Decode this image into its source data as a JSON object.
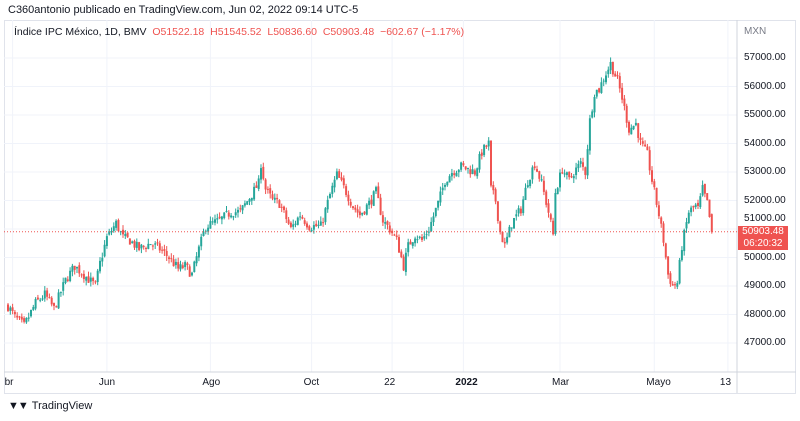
{
  "header": {
    "published": "C360antonio publicado en TradingView.com, Jun 02, 2022 09:14 UTC-5"
  },
  "legend": {
    "symbol": "Índice IPC México, 1D, BMV",
    "open": "O51522.18",
    "high": "H51545.52",
    "low": "L50836.60",
    "close": "C50903.48",
    "change": "−602.67 (−1.17%)"
  },
  "price_label": {
    "value": "50903.48",
    "countdown": "06:20:32"
  },
  "footer": {
    "brand": "TradingView",
    "logo": "17"
  },
  "colors": {
    "up": "#26a69a",
    "down": "#ef5350",
    "grid": "#f0f3fa"
  },
  "chart_data": {
    "type": "candlestick",
    "title": "Índice IPC México, 1D, BMV",
    "currency": "MXN",
    "ylim": [
      46000,
      58000
    ],
    "yticks": [
      "57000.00",
      "56000.00",
      "55000.00",
      "54000.00",
      "53000.00",
      "52000.00",
      "51000.00",
      "50000.00",
      "49000.00",
      "48000.00",
      "47000.00"
    ],
    "ytick_values": [
      57000,
      56000,
      55000,
      54000,
      53000,
      52000,
      51000,
      50000,
      49000,
      48000,
      47000
    ],
    "xticks": [
      "br",
      "Jun",
      "Ago",
      "Oct",
      "22",
      "2022",
      "Mar",
      "Mayo",
      "13"
    ],
    "xtick_days": [
      2,
      43,
      88,
      132,
      167,
      198,
      240,
      281,
      313
    ],
    "last_candle": {
      "open": 51522.18,
      "high": 51545.52,
      "low": 50836.6,
      "close": 50903.48
    },
    "close_keypoints_day_value": [
      [
        0,
        48300
      ],
      [
        3,
        47900
      ],
      [
        7,
        47600
      ],
      [
        12,
        48400
      ],
      [
        16,
        48700
      ],
      [
        20,
        48200
      ],
      [
        25,
        49200
      ],
      [
        29,
        49700
      ],
      [
        33,
        49400
      ],
      [
        38,
        49000
      ],
      [
        40,
        49800
      ],
      [
        43,
        50700
      ],
      [
        47,
        51200
      ],
      [
        50,
        50700
      ],
      [
        53,
        50600
      ],
      [
        57,
        50300
      ],
      [
        62,
        50500
      ],
      [
        66,
        50300
      ],
      [
        70,
        50000
      ],
      [
        74,
        49600
      ],
      [
        77,
        49700
      ],
      [
        80,
        49400
      ],
      [
        83,
        50300
      ],
      [
        86,
        51100
      ],
      [
        89,
        51200
      ],
      [
        92,
        51300
      ],
      [
        97,
        51600
      ],
      [
        101,
        51600
      ],
      [
        105,
        52100
      ],
      [
        109,
        52600
      ],
      [
        110,
        53300
      ],
      [
        112,
        52400
      ],
      [
        115,
        52000
      ],
      [
        118,
        51900
      ],
      [
        123,
        51000
      ],
      [
        127,
        51500
      ],
      [
        131,
        51100
      ],
      [
        136,
        51100
      ],
      [
        140,
        52200
      ],
      [
        143,
        52900
      ],
      [
        147,
        52300
      ],
      [
        150,
        51800
      ],
      [
        153,
        51500
      ],
      [
        157,
        51900
      ],
      [
        160,
        52300
      ],
      [
        163,
        51300
      ],
      [
        166,
        51000
      ],
      [
        169,
        50600
      ],
      [
        172,
        49700
      ],
      [
        174,
        50400
      ],
      [
        177,
        50800
      ],
      [
        180,
        50600
      ],
      [
        183,
        51000
      ],
      [
        187,
        51900
      ],
      [
        190,
        52700
      ],
      [
        193,
        53000
      ],
      [
        197,
        53200
      ],
      [
        200,
        53100
      ],
      [
        203,
        53000
      ],
      [
        206,
        53700
      ],
      [
        209,
        54000
      ],
      [
        210,
        52400
      ],
      [
        212,
        52000
      ],
      [
        214,
        50900
      ],
      [
        216,
        50400
      ],
      [
        219,
        51200
      ],
      [
        223,
        51700
      ],
      [
        226,
        52700
      ],
      [
        229,
        53300
      ],
      [
        232,
        52600
      ],
      [
        235,
        51600
      ],
      [
        237,
        50800
      ],
      [
        238,
        52300
      ],
      [
        241,
        53100
      ],
      [
        244,
        52700
      ],
      [
        246,
        53000
      ],
      [
        249,
        53300
      ],
      [
        251,
        53000
      ],
      [
        253,
        54800
      ],
      [
        255,
        55800
      ],
      [
        257,
        55900
      ],
      [
        259,
        56300
      ],
      [
        262,
        56800
      ],
      [
        265,
        56200
      ],
      [
        267,
        55600
      ],
      [
        270,
        54500
      ],
      [
        273,
        54700
      ],
      [
        275,
        54000
      ],
      [
        278,
        53600
      ],
      [
        280,
        52700
      ],
      [
        283,
        51500
      ],
      [
        285,
        50600
      ],
      [
        287,
        49400
      ],
      [
        289,
        49000
      ],
      [
        291,
        49100
      ],
      [
        293,
        50400
      ],
      [
        296,
        51600
      ],
      [
        299,
        51800
      ],
      [
        300,
        51700
      ],
      [
        302,
        52400
      ],
      [
        304,
        51900
      ],
      [
        306,
        50903.48
      ]
    ]
  }
}
